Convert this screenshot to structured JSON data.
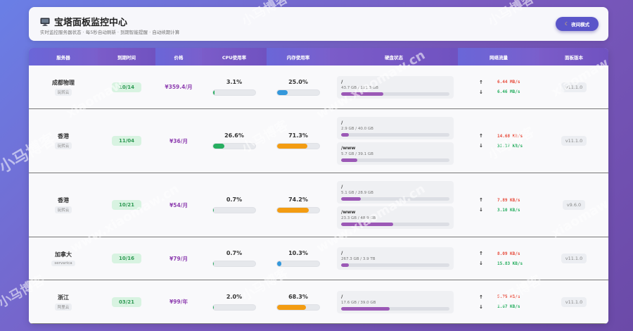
{
  "header": {
    "title": "宝塔面板监控中心",
    "subtitle": "实时监控服务器状态 · 每5秒自动刷新 · 到期智能提醒 · 自动续期计算",
    "night_mode_label": "夜间模式"
  },
  "table": {
    "columns": [
      "服务器",
      "到期时间",
      "价格",
      "CPU使用率",
      "内存使用率",
      "硬盘状态",
      "网络流量",
      "面板版本"
    ],
    "rows": [
      {
        "name": "成都物理",
        "provider": "玩转云",
        "expiry": "10/14",
        "price": "¥359.4/月",
        "cpu": "3.1%",
        "cpu_value": 3.1,
        "mem": "25.0%",
        "mem_value": 25.0,
        "disks": [
          {
            "path": "/",
            "size": "43.7 GB / 111.3 GB",
            "usage": 0.39
          }
        ],
        "net_up": "6.44 MB/s",
        "net_down": "6.46 MB/s",
        "version": "v11.1.0"
      },
      {
        "name": "香港",
        "provider": "玩转云",
        "expiry": "11/04",
        "price": "¥36/月",
        "cpu": "26.6%",
        "cpu_value": 26.6,
        "mem": "71.3%",
        "mem_value": 71.3,
        "disks": [
          {
            "path": "/",
            "size": "2.9 GB / 40.0 GB",
            "usage": 0.07
          },
          {
            "path": "/www",
            "size": "5.7 GB / 39.1 GB",
            "usage": 0.15
          }
        ],
        "net_up": "14.68 KB/s",
        "net_down": "31.37 KB/s",
        "version": "v11.1.0"
      },
      {
        "name": "香港",
        "provider": "玩转云",
        "expiry": "10/21",
        "price": "¥54/月",
        "cpu": "0.7%",
        "cpu_value": 0.7,
        "mem": "74.2%",
        "mem_value": 74.2,
        "disks": [
          {
            "path": "/",
            "size": "5.1 GB / 28.9 GB",
            "usage": 0.18
          },
          {
            "path": "/www",
            "size": "23.3 GB / 48.9 GB",
            "usage": 0.48
          }
        ],
        "net_up": "7.89 KB/s",
        "net_down": "3.10 KB/s",
        "version": "v9.6.0"
      },
      {
        "name": "加拿大",
        "provider": "servarica",
        "expiry": "10/16",
        "price": "¥79/月",
        "cpu": "0.7%",
        "cpu_value": 0.7,
        "mem": "10.3%",
        "mem_value": 10.3,
        "disks": [
          {
            "path": "/",
            "size": "267.3 GB / 3.9 TB",
            "usage": 0.07
          }
        ],
        "net_up": "8.09 KB/s",
        "net_down": "15.83 KB/s",
        "version": "v11.1.0"
      },
      {
        "name": "浙江",
        "provider": "阿里云",
        "expiry": "03/21",
        "price": "¥99/年",
        "cpu": "2.0%",
        "cpu_value": 2.0,
        "mem": "68.3%",
        "mem_value": 68.3,
        "disks": [
          {
            "path": "/",
            "size": "17.6 GB / 39.0 GB",
            "usage": 0.45
          }
        ],
        "net_up": "5.75 KB/s",
        "net_down": "1.67 KB/s",
        "version": "v11.1.0"
      }
    ]
  },
  "colors": {
    "cpu_low": "#27ae60",
    "mem_normal": "#3498db",
    "mem_high": "#f39c12",
    "disk": "#9b59b6",
    "header_bg": "#6e6cd6"
  },
  "icons": {
    "monitor": "monitor-icon",
    "moon": "moon-icon",
    "arrow_up": "↑",
    "arrow_down": "↓"
  },
  "watermarks": [
    "小马博客",
    "www.xiaomaw.cn",
    "xiaomaw"
  ]
}
